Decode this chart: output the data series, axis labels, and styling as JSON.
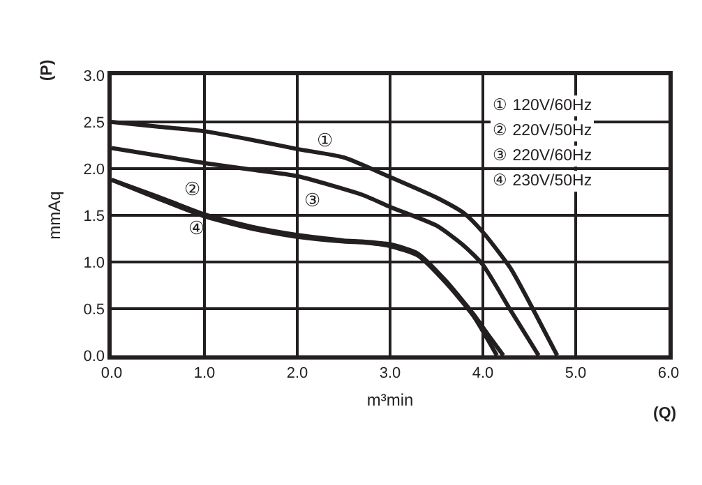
{
  "chart_data": {
    "type": "line",
    "xlabel": "m³min",
    "ylabel": "mmAq",
    "series": [
      {
        "color": "#231f20",
        "x": [
          0,
          0.5,
          1,
          1.5,
          2,
          2.5,
          3,
          3.5,
          3.8,
          4.0,
          4.3,
          4.5,
          4.8
        ],
        "values": [
          2.5,
          2.45,
          2.4,
          2.31,
          2.21,
          2.12,
          1.91,
          1.69,
          1.52,
          1.32,
          0.93,
          0.57,
          0
        ]
      },
      {
        "color": "#231f20",
        "x": [
          0,
          0.5,
          1,
          1.5,
          2,
          2.5,
          2.7,
          3,
          3.3,
          3.6,
          3.9,
          4.05,
          4.22
        ],
        "values": [
          1.88,
          1.7,
          1.51,
          1.38,
          1.29,
          1.23,
          1.22,
          1.19,
          1.09,
          0.8,
          0.44,
          0.23,
          0
        ]
      },
      {
        "color": "#231f20",
        "x": [
          0,
          0.5,
          1,
          1.5,
          2,
          2.7,
          3,
          3.5,
          3.8,
          4.0,
          4.3,
          4.6
        ],
        "values": [
          2.22,
          2.14,
          2.06,
          1.99,
          1.92,
          1.72,
          1.59,
          1.39,
          1.17,
          0.97,
          0.48,
          0
        ]
      },
      {
        "color": "#231f20",
        "x": [
          0,
          0.5,
          1,
          1.5,
          2,
          2.5,
          2.7,
          3,
          3.3,
          3.6,
          3.9,
          4.15
        ],
        "values": [
          1.88,
          1.68,
          1.49,
          1.36,
          1.27,
          1.22,
          1.21,
          1.17,
          1.07,
          0.78,
          0.42,
          0
        ]
      }
    ],
    "xlim": [
      0,
      6
    ],
    "xticks": [
      {
        "value": 0,
        "label": "0.0"
      },
      {
        "value": 1,
        "label": "1.0"
      },
      {
        "value": 2,
        "label": "2.0"
      },
      {
        "value": 3,
        "label": "3.0"
      },
      {
        "value": 4,
        "label": "4.0"
      },
      {
        "value": 5,
        "label": "5.0"
      },
      {
        "value": 6,
        "label": "6.0"
      }
    ],
    "ylim": [
      0,
      3
    ],
    "yticks": [
      {
        "value": 0,
        "label": "0.0"
      },
      0.5,
      {
        "value": 1,
        "label": "1.0"
      },
      1.5,
      {
        "value": 2,
        "label": "2.0"
      },
      2.5,
      {
        "value": 3,
        "label": "3.0"
      }
    ],
    "grid": true,
    "marker": "none",
    "line_style": "solid",
    "annotations": [
      "① 120V/60Hz",
      "② 220V/50Hz",
      "③ 220V/60Hz",
      "④ 230V/50Hz",
      "(P)",
      "(Q)",
      "①",
      "②",
      "③",
      "④"
    ]
  }
}
